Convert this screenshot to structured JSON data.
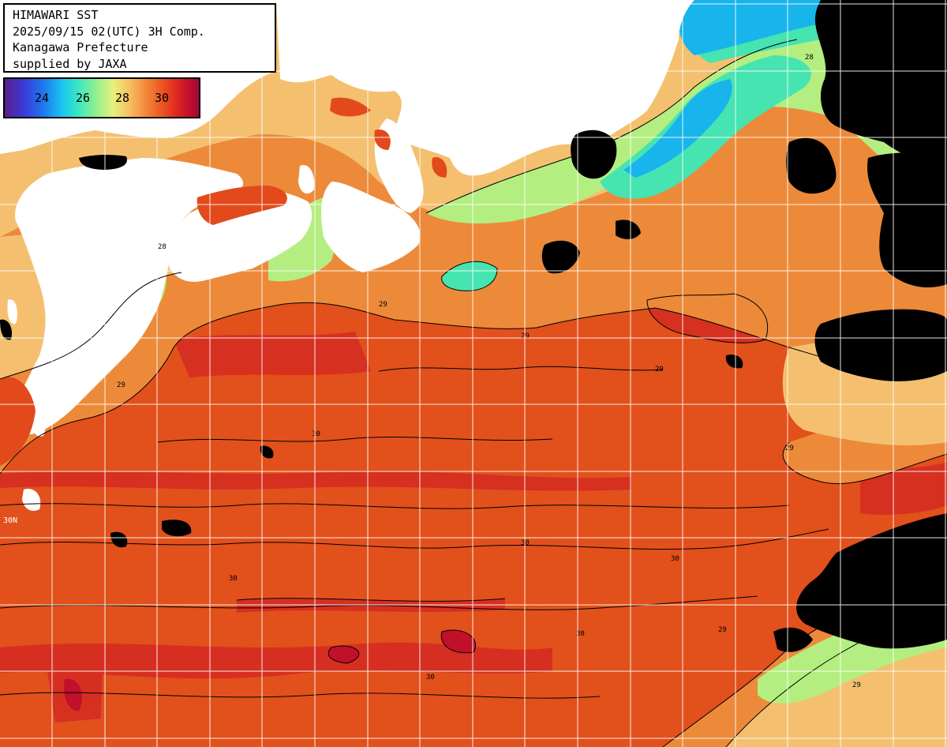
{
  "header": {
    "line1": "HIMAWARI SST",
    "line2": "2025/09/15 02(UTC) 3H Comp.",
    "line3": "Kanagawa Prefecture",
    "line4": "supplied by JAXA"
  },
  "colorbar": {
    "ticks": [
      "24",
      "26",
      "28",
      "30"
    ]
  },
  "contour_labels": [
    "29",
    "28",
    "29",
    "30",
    "29",
    "28",
    "30",
    "29",
    "30",
    "30",
    "29",
    "30",
    "29",
    "28",
    "29",
    "30"
  ],
  "lat_label": "30N",
  "colors": {
    "land": "#ffffff",
    "cloud": "#000000",
    "sst_30": "#e2501c",
    "sst_29": "#ec8a3a",
    "sst_28": "#f4c070",
    "sst_27": "#b4ee80",
    "sst_26": "#46e4b0",
    "sst_25": "#18b4ec",
    "sst_31": "#cc1e2c",
    "grid": "#ffffff",
    "contour": "#000000"
  }
}
